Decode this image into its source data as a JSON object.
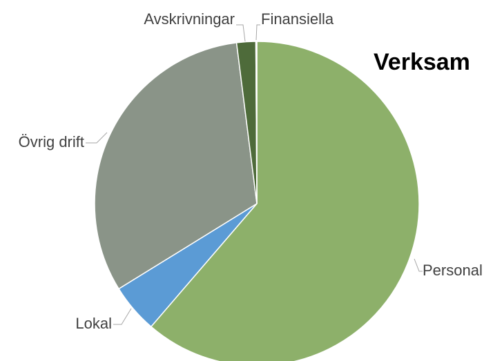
{
  "chart_data": {
    "type": "pie",
    "title": "Verksam",
    "categories": [
      "Personal",
      "Lokal",
      "Övrig drift",
      "Avskrivningar",
      "Finansiella"
    ],
    "values": [
      61.3,
      4.9,
      31.8,
      1.9,
      0.1
    ],
    "colors": [
      "#8db06a",
      "#5b9bd5",
      "#8a9488",
      "#4e6b3a",
      "#3b5a2b"
    ]
  }
}
